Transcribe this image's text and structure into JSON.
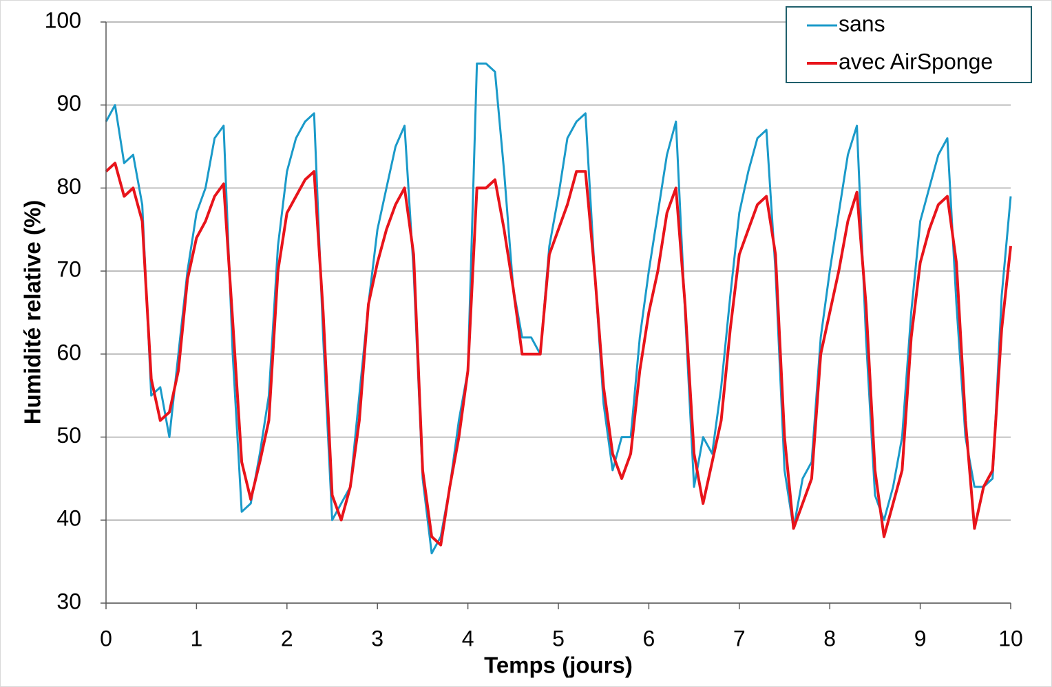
{
  "chart_data": {
    "type": "line",
    "x_label": "Temps (jours)",
    "y_label": "Humidité relative (%)",
    "x": [
      0,
      0.1,
      0.2,
      0.3,
      0.4,
      0.5,
      0.6,
      0.7,
      0.8,
      0.9,
      1,
      1.1,
      1.2,
      1.3,
      1.4,
      1.5,
      1.6,
      1.7,
      1.8,
      1.9,
      2,
      2.1,
      2.2,
      2.3,
      2.4,
      2.5,
      2.6,
      2.7,
      2.8,
      2.9,
      3,
      3.1,
      3.2,
      3.3,
      3.4,
      3.5,
      3.6,
      3.7,
      3.8,
      3.9,
      4,
      4.1,
      4.2,
      4.3,
      4.4,
      4.5,
      4.6,
      4.7,
      4.8,
      4.9,
      5,
      5.1,
      5.2,
      5.3,
      5.4,
      5.5,
      5.6,
      5.7,
      5.8,
      5.9,
      6,
      6.1,
      6.2,
      6.3,
      6.4,
      6.5,
      6.6,
      6.7,
      6.8,
      6.9,
      7,
      7.1,
      7.2,
      7.3,
      7.4,
      7.5,
      7.6,
      7.7,
      7.8,
      7.9,
      8,
      8.1,
      8.2,
      8.3,
      8.4,
      8.5,
      8.6,
      8.7,
      8.8,
      8.9,
      9,
      9.1,
      9.2,
      9.3,
      9.4,
      9.5,
      9.6,
      9.7,
      9.8,
      9.9,
      10
    ],
    "series": [
      {
        "name": "sans",
        "color": "#1a9ac9",
        "values": [
          88,
          90,
          83,
          84,
          78,
          55,
          56,
          50,
          60,
          70,
          77,
          80,
          86,
          87.5,
          60,
          41,
          42,
          48,
          55,
          73,
          82,
          86,
          88,
          89,
          62,
          40,
          42,
          44,
          55,
          66,
          75,
          80,
          85,
          87.5,
          70,
          45,
          36,
          38,
          44,
          52,
          58,
          95,
          95,
          94,
          82,
          68,
          62,
          62,
          60,
          73,
          79,
          86,
          88,
          89,
          70,
          54,
          46,
          50,
          50,
          62,
          70,
          77,
          84,
          88,
          65,
          44,
          50,
          48,
          56,
          67,
          77,
          82,
          86,
          87,
          70,
          46,
          39,
          45,
          47,
          62,
          70,
          77,
          84,
          87.5,
          62,
          43,
          40,
          44,
          50,
          65,
          76,
          80,
          84,
          86,
          66,
          50,
          44,
          44,
          45,
          67,
          79
        ]
      },
      {
        "name": "avec AirSponge",
        "color": "#e8141b",
        "values": [
          82,
          83,
          79,
          80,
          76,
          57,
          52,
          53,
          58,
          69,
          74,
          76,
          79,
          80.5,
          64,
          47,
          42.5,
          47,
          52,
          70,
          77,
          79,
          81,
          82,
          65,
          43,
          40,
          44,
          52,
          66,
          71,
          75,
          78,
          80,
          72,
          46,
          38,
          37,
          44,
          50,
          58,
          80,
          80,
          81,
          75,
          68,
          60,
          60,
          60,
          72,
          75,
          78,
          82,
          82,
          70,
          56,
          48,
          45,
          48,
          58,
          65,
          70,
          77,
          80,
          66,
          48,
          42,
          47,
          52,
          63,
          72,
          75,
          78,
          79,
          72,
          50,
          39,
          42,
          45,
          60,
          65,
          70,
          76,
          79.5,
          66,
          46,
          38,
          42,
          46,
          62,
          71,
          75,
          78,
          79,
          71,
          52,
          39,
          44,
          46,
          63,
          73
        ]
      }
    ],
    "xlim": [
      0,
      10
    ],
    "xticks": [
      0,
      1,
      2,
      3,
      4,
      5,
      6,
      7,
      8,
      9,
      10
    ],
    "ylim": [
      30,
      100
    ],
    "yticks": [
      30,
      40,
      50,
      60,
      70,
      80,
      90,
      100
    ],
    "grid": true,
    "legend": "top-right"
  }
}
